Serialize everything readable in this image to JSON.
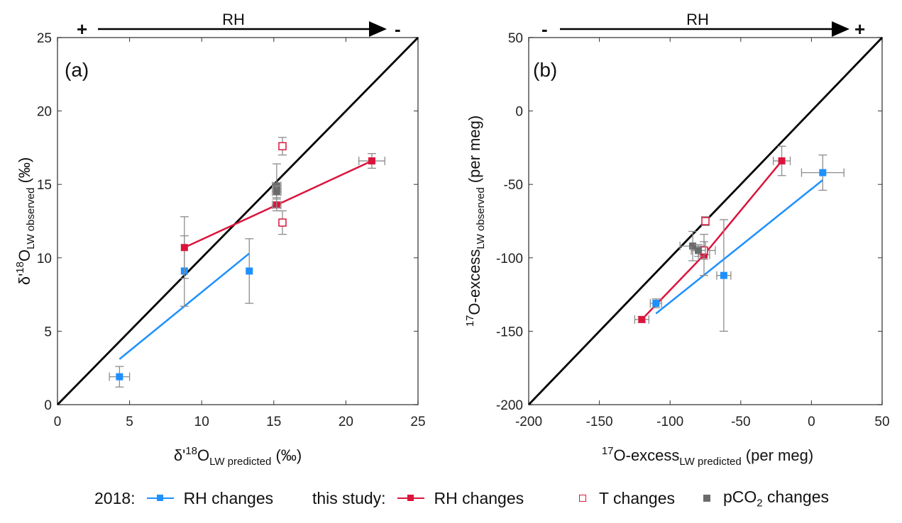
{
  "figure": {
    "colors": {
      "rh2018": "#1e90ff",
      "rh_this_study": "#dc143c",
      "t_changes": "#dc143c",
      "pco2": "#6b6b6b",
      "errorbar": "#8c8c8c",
      "one_to_one": "#000000"
    },
    "rh_arrow": {
      "label": "RH",
      "a_left_sign": "+",
      "a_right_sign": "-",
      "b_left_sign": "-",
      "b_right_sign": "+"
    },
    "legend": {
      "group1_label": "2018:",
      "rh2018_label": "RH changes",
      "group2_label": "this study:",
      "rh_label": "RH changes",
      "t_label": "T changes",
      "pco2_label_pre": "pCO",
      "pco2_label_sub": "2",
      "pco2_label_post": " changes"
    }
  },
  "chart_data": [
    {
      "type": "scatter",
      "panel_label": "(a)",
      "xlabel": "δ'18O LW predicted (‰)",
      "xlabel_parts": {
        "main": "δ'",
        "sup": "18",
        "o": "O",
        "sub": "LW predicted",
        "unit": " (‰)"
      },
      "ylabel": "δ'18O LW observed (‰)",
      "ylabel_parts": {
        "main": "δ'",
        "sup": "18",
        "o": "O",
        "sub": "LW observed",
        "unit": " (‰)"
      },
      "xlim": [
        0,
        25
      ],
      "ylim": [
        0,
        25
      ],
      "xticks": [
        0,
        5,
        10,
        15,
        20,
        25
      ],
      "yticks": [
        0,
        5,
        10,
        15,
        20,
        25
      ],
      "grid": false,
      "one_to_one_line": true,
      "series": [
        {
          "name": "2018: RH changes",
          "key": "rh2018",
          "marker": "filled-square",
          "points": [
            {
              "x": 4.3,
              "y": 1.9,
              "xerr": 0.7,
              "yerr": 0.7
            },
            {
              "x": 8.8,
              "y": 9.1,
              "xerr": 0,
              "yerr_low": 2.4,
              "yerr_high": 2.4
            },
            {
              "x": 13.3,
              "y": 9.1,
              "xerr": 0,
              "yerr_low": 2.2,
              "yerr_high": 2.2
            }
          ],
          "fit_line": [
            [
              4.3,
              3.1
            ],
            [
              13.3,
              10.3
            ]
          ]
        },
        {
          "name": "this study: RH changes",
          "key": "rh_this_study",
          "marker": "filled-square",
          "points": [
            {
              "x": 8.8,
              "y": 10.7,
              "xerr": 0,
              "yerr": 2.1
            },
            {
              "x": 15.2,
              "y": 13.6,
              "xerr": 0.3,
              "yerr": 0.4
            },
            {
              "x": 21.8,
              "y": 16.6,
              "xerr": 0.9,
              "yerr": 0.5
            }
          ],
          "connect": true
        },
        {
          "name": "this study: T changes",
          "key": "t_changes",
          "marker": "open-square",
          "points": [
            {
              "x": 15.6,
              "y": 17.6,
              "xerr": 0,
              "yerr": 0.6
            },
            {
              "x": 15.6,
              "y": 12.4,
              "xerr": 0,
              "yerr": 0.8
            }
          ]
        },
        {
          "name": "this study: pCO2 changes",
          "key": "pco2",
          "marker": "filled-square",
          "points": [
            {
              "x": 15.2,
              "y": 14.9,
              "xerr": 0.3,
              "yerr": 1.5
            },
            {
              "x": 15.2,
              "y": 14.5,
              "xerr": 0.3,
              "yerr": 0.4
            }
          ]
        }
      ]
    },
    {
      "type": "scatter",
      "panel_label": "(b)",
      "xlabel": "17O-excess LW predicted (per meg)",
      "xlabel_parts": {
        "sup": "17",
        "main": "O-excess",
        "sub": "LW predicted",
        "unit": " (per meg)"
      },
      "ylabel": "17O-excess LW observed (per meg)",
      "ylabel_parts": {
        "sup": "17",
        "main": "O-excess",
        "sub": "LW observed",
        "unit": " (per meg)"
      },
      "xlim": [
        -200,
        50
      ],
      "ylim": [
        -200,
        50
      ],
      "xticks": [
        -200,
        -150,
        -100,
        -50,
        0,
        50
      ],
      "yticks": [
        -200,
        -150,
        -100,
        -50,
        0,
        50
      ],
      "grid": false,
      "one_to_one_line": true,
      "series": [
        {
          "name": "2018: RH changes",
          "key": "rh2018",
          "marker": "filled-square",
          "points": [
            {
              "x": 8,
              "y": -42,
              "xerr": 15,
              "yerr": 12
            },
            {
              "x": -62,
              "y": -112,
              "xerr": 5,
              "yerr": 38
            },
            {
              "x": -110,
              "y": -131,
              "xerr": 4,
              "yerr": 3
            }
          ],
          "fit_line": [
            [
              -110,
              -138
            ],
            [
              8,
              -47
            ]
          ]
        },
        {
          "name": "this study: RH changes",
          "key": "rh_this_study",
          "marker": "filled-square",
          "points": [
            {
              "x": -120,
              "y": -142,
              "xerr": 5,
              "yerr": 2
            },
            {
              "x": -76,
              "y": -98,
              "xerr": 4,
              "yerr": 14
            },
            {
              "x": -21,
              "y": -34,
              "xerr": 6,
              "yerr": 10
            }
          ],
          "connect": true
        },
        {
          "name": "this study: T changes",
          "key": "t_changes",
          "marker": "open-square",
          "points": [
            {
              "x": -75,
              "y": -75,
              "xerr": 2,
              "yerr": 3
            },
            {
              "x": -76,
              "y": -95,
              "xerr": 8,
              "yerr": 6
            }
          ]
        },
        {
          "name": "this study: pCO2 changes",
          "key": "pco2",
          "marker": "filled-square",
          "points": [
            {
              "x": -84,
              "y": -92,
              "xerr": 9,
              "yerr": 10
            },
            {
              "x": -80,
              "y": -95,
              "xerr": 5,
              "yerr": 4
            }
          ]
        }
      ]
    }
  ]
}
